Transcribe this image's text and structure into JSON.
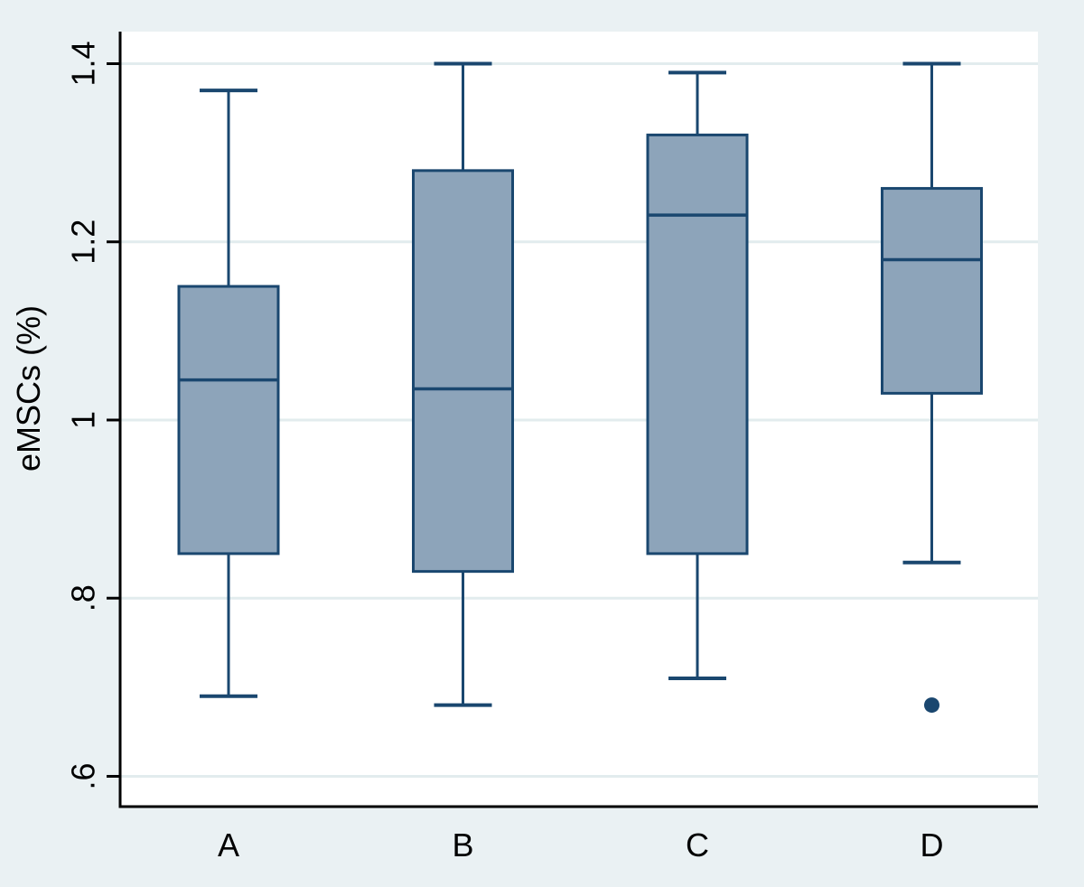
{
  "chart_data": {
    "type": "box",
    "title": "",
    "xlabel": "",
    "ylabel": "eMSCs (%)",
    "categories": [
      "A",
      "B",
      "C",
      "D"
    ],
    "series": [
      {
        "category": "A",
        "whisker_low": 0.69,
        "q1": 0.85,
        "median": 1.045,
        "q3": 1.15,
        "whisker_high": 1.37,
        "outliers": []
      },
      {
        "category": "B",
        "whisker_low": 0.68,
        "q1": 0.83,
        "median": 1.035,
        "q3": 1.28,
        "whisker_high": 1.4,
        "outliers": []
      },
      {
        "category": "C",
        "whisker_low": 0.71,
        "q1": 0.85,
        "median": 1.23,
        "q3": 1.32,
        "whisker_high": 1.39,
        "outliers": []
      },
      {
        "category": "D",
        "whisker_low": 0.84,
        "q1": 1.03,
        "median": 1.18,
        "q3": 1.26,
        "whisker_high": 1.4,
        "outliers": [
          0.68
        ]
      }
    ],
    "y_ticks": [
      {
        "value": 0.6,
        "label": ".6"
      },
      {
        "value": 0.8,
        "label": ".8"
      },
      {
        "value": 1.0,
        "label": "1"
      },
      {
        "value": 1.2,
        "label": "1.2"
      },
      {
        "value": 1.4,
        "label": "1.4"
      }
    ],
    "ylim": [
      0.566,
      1.436
    ],
    "grid": true,
    "legend": "none",
    "colors": {
      "background": "#eaf1f3",
      "plot_background": "#ffffff",
      "grid": "#e2ecee",
      "box_fill": "#8da4ba",
      "box_stroke": "#1a476f",
      "axis": "#000000",
      "text": "#000000"
    }
  }
}
